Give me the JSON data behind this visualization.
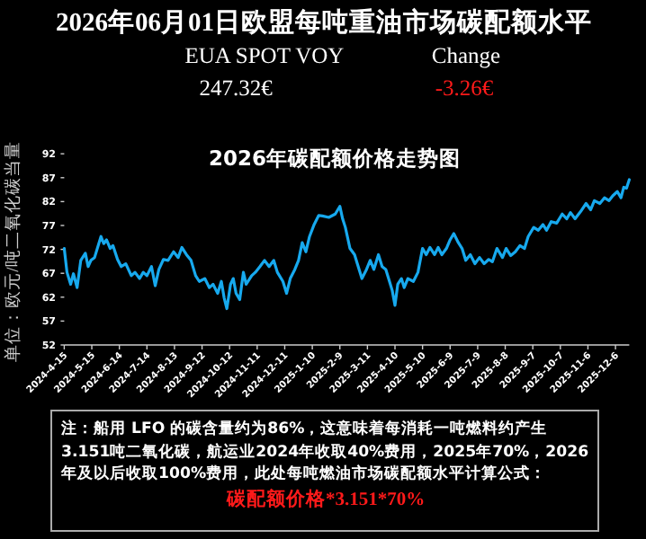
{
  "chart_data": {
    "type": "line",
    "title": "2026年06月01日欧盟每吨重油市场碳配额水平",
    "subtitle": "2026年碳配额价格走势图",
    "ylabel": "单位：欧元/吨二氧化碳当量",
    "annotations": [
      "EUA SPOT VOY",
      "247.32€",
      "Change",
      "-3.26€",
      "注：船用 LFO 的碳含量约为86%，这意味着每消耗一吨燃料约产生3.151吨二氧化碳，航运业2024年收取40%费用，2025年70%，2026年及以后收取100%费用，此处每吨燃油市场碳配额水平计算公式：",
      "碳配额价格*3.151*70%"
    ],
    "x": [
      "2024-04-15",
      "2024-04-18",
      "2024-04-22",
      "2024-04-25",
      "2024-04-29",
      "2024-05-03",
      "2024-05-08",
      "2024-05-11",
      "2024-05-14",
      "2024-05-18",
      "2024-05-22",
      "2024-05-25",
      "2024-05-28",
      "2024-05-31",
      "2024-06-04",
      "2024-06-07",
      "2024-06-12",
      "2024-06-16",
      "2024-06-21",
      "2024-06-27",
      "2024-07-01",
      "2024-07-06",
      "2024-07-10",
      "2024-07-14",
      "2024-07-19",
      "2024-07-23",
      "2024-07-27",
      "2024-08-01",
      "2024-08-06",
      "2024-08-12",
      "2024-08-17",
      "2024-08-21",
      "2024-08-26",
      "2024-08-31",
      "2024-09-05",
      "2024-09-09",
      "2024-09-15",
      "2024-09-20",
      "2024-09-24",
      "2024-09-29",
      "2024-10-03",
      "2024-10-06",
      "2024-10-09",
      "2024-10-13",
      "2024-10-16",
      "2024-10-19",
      "2024-10-23",
      "2024-10-27",
      "2024-10-30",
      "2024-11-05",
      "2024-11-09",
      "2024-11-14",
      "2024-11-19",
      "2024-11-24",
      "2024-11-29",
      "2024-12-03",
      "2024-12-09",
      "2024-12-13",
      "2024-12-17",
      "2024-12-22",
      "2024-12-26",
      "2024-12-30",
      "2025-01-03",
      "2025-01-07",
      "2025-01-12",
      "2025-01-17",
      "2025-01-21",
      "2025-01-28",
      "2025-02-04",
      "2025-02-09",
      "2025-02-12",
      "2025-02-15",
      "2025-02-20",
      "2025-02-25",
      "2025-02-28",
      "2025-03-05",
      "2025-03-10",
      "2025-03-14",
      "2025-03-18",
      "2025-03-23",
      "2025-03-27",
      "2025-03-31",
      "2025-04-04",
      "2025-04-07",
      "2025-04-10",
      "2025-04-13",
      "2025-04-17",
      "2025-04-20",
      "2025-04-24",
      "2025-04-30",
      "2025-05-05",
      "2025-05-10",
      "2025-05-14",
      "2025-05-18",
      "2025-05-23",
      "2025-05-27",
      "2025-05-31",
      "2025-06-05",
      "2025-06-09",
      "2025-06-13",
      "2025-06-18",
      "2025-06-22",
      "2025-06-26",
      "2025-07-01",
      "2025-07-06",
      "2025-07-11",
      "2025-07-16",
      "2025-07-21",
      "2025-07-25",
      "2025-07-30",
      "2025-08-05",
      "2025-08-09",
      "2025-08-14",
      "2025-08-19",
      "2025-08-24",
      "2025-08-29",
      "2025-09-02",
      "2025-09-08",
      "2025-09-13",
      "2025-09-18",
      "2025-09-22",
      "2025-09-27",
      "2025-10-03",
      "2025-10-09",
      "2025-10-14",
      "2025-10-18",
      "2025-10-23",
      "2025-10-29",
      "2025-11-04",
      "2025-11-09",
      "2025-11-13",
      "2025-11-19",
      "2025-11-24",
      "2025-11-29",
      "2025-12-03",
      "2025-12-08",
      "2025-12-12",
      "2025-12-15",
      "2025-12-18",
      "2025-12-21"
    ],
    "series": [
      {
        "color": "#17a9ee",
        "values": [
          72.2,
          67.2,
          64.7,
          66.9,
          64.0,
          69.7,
          71.2,
          68.4,
          69.7,
          70.3,
          72.8,
          74.7,
          73.2,
          74.0,
          72.2,
          72.8,
          69.9,
          68.4,
          69.0,
          66.5,
          67.2,
          65.9,
          67.2,
          66.5,
          68.4,
          64.4,
          67.8,
          69.9,
          69.7,
          71.5,
          70.3,
          72.4,
          70.9,
          69.7,
          66.5,
          65.3,
          65.9,
          64.0,
          64.7,
          62.8,
          65.3,
          61.9,
          59.6,
          64.7,
          65.9,
          62.8,
          61.5,
          67.2,
          64.7,
          66.5,
          67.2,
          68.4,
          69.7,
          68.4,
          69.7,
          67.2,
          65.3,
          62.8,
          65.9,
          67.8,
          69.7,
          73.4,
          71.5,
          74.7,
          77.2,
          79.1,
          79.0,
          78.7,
          79.4,
          81.0,
          78.4,
          76.6,
          72.2,
          70.9,
          69.0,
          65.9,
          67.8,
          69.7,
          67.8,
          70.9,
          68.4,
          67.8,
          65.3,
          63.4,
          60.3,
          64.7,
          65.9,
          64.0,
          65.9,
          65.3,
          67.2,
          72.2,
          70.9,
          72.4,
          70.9,
          72.4,
          70.9,
          72.2,
          74.0,
          75.3,
          73.4,
          72.2,
          69.7,
          70.9,
          69.0,
          70.3,
          69.0,
          69.9,
          69.4,
          72.2,
          70.3,
          72.2,
          70.7,
          71.5,
          72.8,
          72.2,
          74.7,
          76.6,
          76.0,
          77.2,
          76.0,
          77.8,
          77.5,
          79.4,
          78.4,
          79.7,
          78.4,
          79.9,
          81.6,
          80.3,
          82.2,
          81.6,
          82.8,
          82.2,
          83.2,
          84.1,
          82.8,
          85.0,
          84.8,
          86.6
        ]
      }
    ],
    "xlim": [
      "2024-04-15",
      "2025-12-21"
    ],
    "xticks": [
      {
        "value": "2024-04-15",
        "label": "2024-4-15"
      },
      {
        "value": "2024-05-15",
        "label": "2024-5-15"
      },
      {
        "value": "2024-06-14",
        "label": "2024-6-14"
      },
      {
        "value": "2024-07-14",
        "label": "2024-7-14"
      },
      {
        "value": "2024-08-13",
        "label": "2024-8-13"
      },
      {
        "value": "2024-09-12",
        "label": "2024-9-12"
      },
      {
        "value": "2024-10-12",
        "label": "2024-10-12"
      },
      {
        "value": "2024-11-11",
        "label": "2024-11-11"
      },
      {
        "value": "2024-12-11",
        "label": "2024-12-11"
      },
      {
        "value": "2025-01-10",
        "label": "2025-1-10"
      },
      {
        "value": "2025-02-09",
        "label": "2025-2-9"
      },
      {
        "value": "2025-03-11",
        "label": "2025-3-11"
      },
      {
        "value": "2025-04-10",
        "label": "2025-4-10"
      },
      {
        "value": "2025-05-10",
        "label": "2025-5-10"
      },
      {
        "value": "2025-06-09",
        "label": "2025-6-9"
      },
      {
        "value": "2025-07-09",
        "label": "2025-7-9"
      },
      {
        "value": "2025-08-08",
        "label": "2025-8-8"
      },
      {
        "value": "2025-09-07",
        "label": "2025-9-7"
      },
      {
        "value": "2025-10-07",
        "label": "2025-10-7"
      },
      {
        "value": "2025-11-06",
        "label": "2025-11-6"
      },
      {
        "value": "2025-12-06",
        "label": "2025-12-6"
      }
    ],
    "ylim": [
      52,
      92
    ],
    "yticks": [
      52,
      57,
      62,
      67,
      72,
      77,
      82,
      87,
      92
    ]
  }
}
